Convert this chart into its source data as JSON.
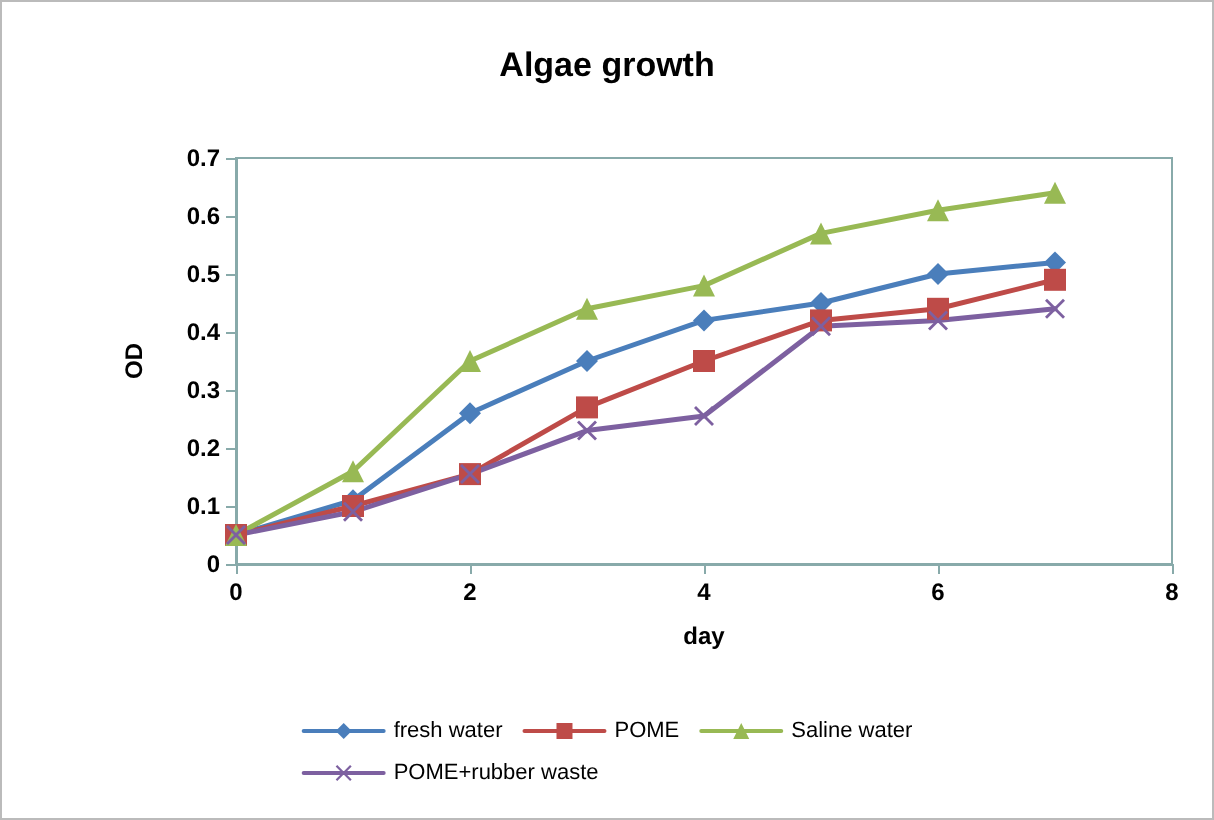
{
  "chart_data": {
    "type": "line",
    "title": "Algae growth",
    "xlabel": "day",
    "ylabel": "OD",
    "x": [
      0,
      1,
      2,
      3,
      4,
      5,
      6,
      7
    ],
    "xlim": [
      0,
      8
    ],
    "xticks": [
      0,
      2,
      4,
      6,
      8
    ],
    "ylim": [
      0,
      0.7
    ],
    "yticks": [
      0,
      0.1,
      0.2,
      0.3,
      0.4,
      0.5,
      0.6,
      0.7
    ],
    "grid": false,
    "legend": "bottom",
    "series": [
      {
        "name": "fresh water",
        "color": "#4a7ebb",
        "marker": "diamond",
        "values": [
          0.05,
          0.11,
          0.26,
          0.35,
          0.42,
          0.45,
          0.5,
          0.52
        ]
      },
      {
        "name": "POME",
        "color": "#be4b48",
        "marker": "square",
        "values": [
          0.05,
          0.1,
          0.155,
          0.27,
          0.35,
          0.42,
          0.44,
          0.49
        ]
      },
      {
        "name": "Saline water",
        "color": "#98b954",
        "marker": "triangle",
        "values": [
          0.05,
          0.16,
          0.35,
          0.44,
          0.48,
          0.57,
          0.61,
          0.64
        ]
      },
      {
        "name": "POME+rubber waste",
        "color": "#7d60a0",
        "marker": "cross",
        "values": [
          0.05,
          0.09,
          0.155,
          0.23,
          0.255,
          0.41,
          0.42,
          0.44
        ]
      }
    ]
  }
}
